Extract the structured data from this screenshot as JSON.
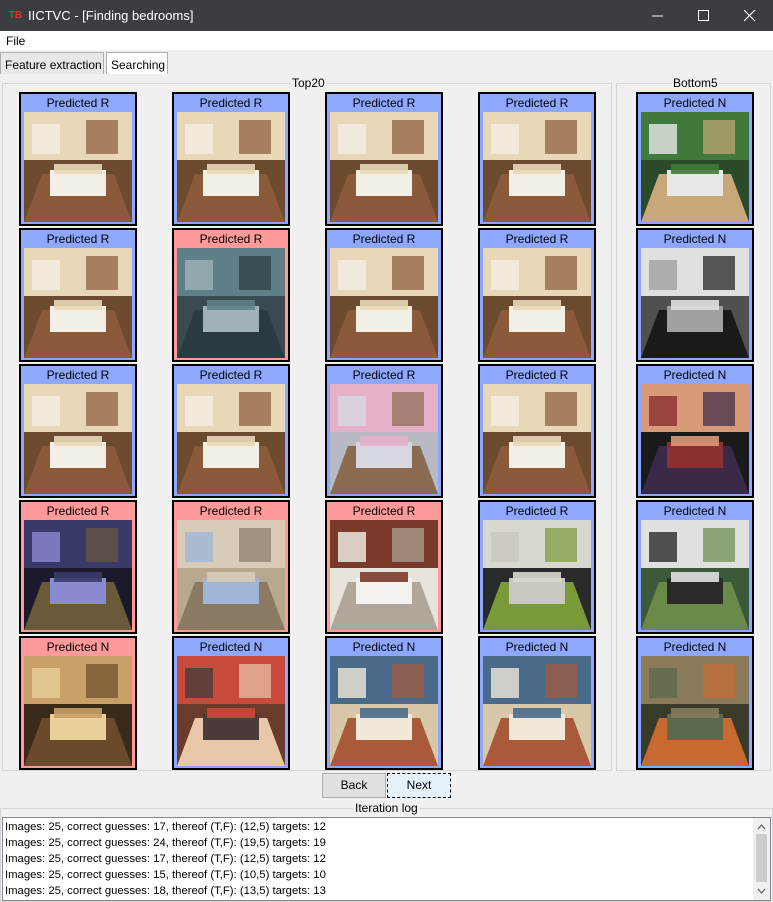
{
  "window": {
    "title": "IICTVC - [Finding bedrooms]",
    "app_icon_text": "TB"
  },
  "menu": {
    "file": "File"
  },
  "tabs": [
    {
      "label": "Feature extraction"
    },
    {
      "label": "Searching"
    }
  ],
  "colors": {
    "positive": "#8fa8ff",
    "negative": "#ff9a9a"
  },
  "top": {
    "label": "Top20",
    "cards": [
      {
        "caption": "Predicted R",
        "status": "positive",
        "scene": "bedroom"
      },
      {
        "caption": "Predicted R",
        "status": "positive",
        "scene": "bedroom"
      },
      {
        "caption": "Predicted R",
        "status": "positive",
        "scene": "bedroom"
      },
      {
        "caption": "Predicted R",
        "status": "positive",
        "scene": "bedroom"
      },
      {
        "caption": "Predicted R",
        "status": "positive",
        "scene": "bedroom"
      },
      {
        "caption": "Predicted R",
        "status": "negative",
        "scene": "bus interior"
      },
      {
        "caption": "Predicted R",
        "status": "positive",
        "scene": "bedroom"
      },
      {
        "caption": "Predicted R",
        "status": "positive",
        "scene": "bedroom"
      },
      {
        "caption": "Predicted R",
        "status": "positive",
        "scene": "bedroom"
      },
      {
        "caption": "Predicted R",
        "status": "positive",
        "scene": "bedroom"
      },
      {
        "caption": "Predicted R",
        "status": "positive",
        "scene": "dog on bed"
      },
      {
        "caption": "Predicted R",
        "status": "positive",
        "scene": "bedroom"
      },
      {
        "caption": "Predicted R",
        "status": "negative",
        "scene": "bowling alley"
      },
      {
        "caption": "Predicted R",
        "status": "negative",
        "scene": "rocky canyon"
      },
      {
        "caption": "Predicted R",
        "status": "negative",
        "scene": "shop interior"
      },
      {
        "caption": "Predicted R",
        "status": "positive",
        "scene": "cushions"
      },
      {
        "caption": "Predicted N",
        "status": "negative",
        "scene": "living room"
      },
      {
        "caption": "Predicted N",
        "status": "positive",
        "scene": "market stall"
      },
      {
        "caption": "Predicted N",
        "status": "positive",
        "scene": "video store"
      },
      {
        "caption": "Predicted N",
        "status": "positive",
        "scene": "video store"
      }
    ]
  },
  "bottom": {
    "label": "Bottom5",
    "cards": [
      {
        "caption": "Predicted N",
        "status": "positive",
        "scene": "baseball"
      },
      {
        "caption": "Predicted N",
        "status": "positive",
        "scene": "dancers"
      },
      {
        "caption": "Predicted N",
        "status": "positive",
        "scene": "boxer"
      },
      {
        "caption": "Predicted N",
        "status": "positive",
        "scene": "people"
      },
      {
        "caption": "Predicted N",
        "status": "positive",
        "scene": "worker"
      }
    ]
  },
  "buttons": {
    "back": "Back",
    "next": "Next"
  },
  "log": {
    "label": "Iteration log",
    "lines": [
      "Images: 25, correct guesses: 17, thereof (T,F): (12,5) targets: 12",
      "Images: 25, correct guesses: 24, thereof (T,F): (19,5) targets: 19",
      "Images: 25, correct guesses: 17, thereof (T,F): (12,5) targets: 12",
      "Images: 25, correct guesses: 15, thereof (T,F): (10,5) targets: 10",
      "Images: 25, correct guesses: 18, thereof (T,F): (13,5) targets: 13"
    ]
  }
}
